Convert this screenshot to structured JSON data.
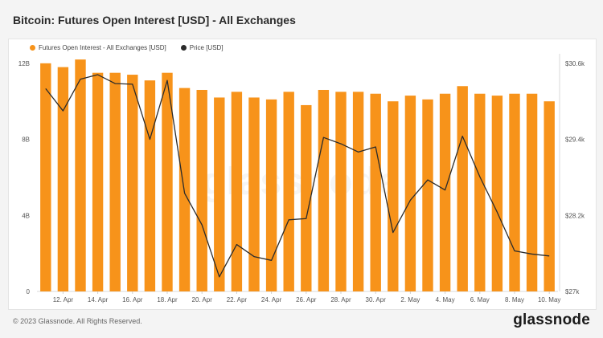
{
  "header": {
    "title": "Bitcoin: Futures Open Interest [USD] - All Exchanges"
  },
  "legend": {
    "oi_label": "Futures Open Interest - All Exchanges [USD]",
    "price_label": "Price [USD]"
  },
  "watermark": "glassnode",
  "footer": {
    "copyright": "© 2023 Glassnode. All Rights Reserved.",
    "brand": "glassnode"
  },
  "colors": {
    "bar": "#f7931a",
    "line": "#2b2b2b"
  },
  "chart_data": {
    "type": "bar",
    "categories": [
      "11 Apr",
      "12 Apr",
      "13 Apr",
      "14 Apr",
      "15 Apr",
      "16 Apr",
      "17 Apr",
      "18 Apr",
      "19 Apr",
      "20 Apr",
      "21 Apr",
      "22 Apr",
      "23 Apr",
      "24 Apr",
      "25 Apr",
      "26 Apr",
      "27 Apr",
      "28 Apr",
      "29 Apr",
      "30 Apr",
      "1 May",
      "2 May",
      "3 May",
      "4 May",
      "5 May",
      "6 May",
      "7 May",
      "8 May",
      "9 May",
      "10 May"
    ],
    "x_tick_labels": [
      "12. Apr",
      "14. Apr",
      "16. Apr",
      "18. Apr",
      "20. Apr",
      "22. Apr",
      "24. Apr",
      "26. Apr",
      "28. Apr",
      "30. Apr",
      "2. May",
      "4. May",
      "6. May",
      "8. May",
      "10. May"
    ],
    "series": [
      {
        "name": "Futures Open Interest - All Exchanges [USD]",
        "type": "bar",
        "axis": "left",
        "values": [
          12.0,
          11.8,
          12.2,
          11.5,
          11.5,
          11.4,
          11.1,
          11.5,
          10.7,
          10.6,
          10.2,
          10.5,
          10.2,
          10.1,
          10.5,
          9.8,
          10.6,
          10.5,
          10.5,
          10.4,
          10.0,
          10.3,
          10.1,
          10.4,
          10.8,
          10.4,
          10.3,
          10.4,
          10.4,
          10.0
        ]
      },
      {
        "name": "Price [USD]",
        "type": "line",
        "axis": "right",
        "values": [
          30200,
          29850,
          30350,
          30420,
          30280,
          30270,
          29400,
          30330,
          28550,
          28050,
          27230,
          27740,
          27550,
          27490,
          28130,
          28150,
          29430,
          29330,
          29200,
          29280,
          27930,
          28440,
          28760,
          28600,
          29450,
          28810,
          28250,
          27640,
          27590,
          27560
        ]
      }
    ],
    "y_left": {
      "ticks": [
        "0",
        "4B",
        "8B",
        "12B"
      ],
      "tick_values": [
        0,
        4,
        8,
        12
      ],
      "range": [
        0,
        12.5
      ]
    },
    "y_right": {
      "ticks": [
        "$27k",
        "$28.2k",
        "$29.4k",
        "$30.6k"
      ],
      "tick_values": [
        27000,
        28200,
        29400,
        30600
      ],
      "range": [
        27000,
        30750
      ]
    },
    "grid": false,
    "legend_position": "top-left"
  }
}
